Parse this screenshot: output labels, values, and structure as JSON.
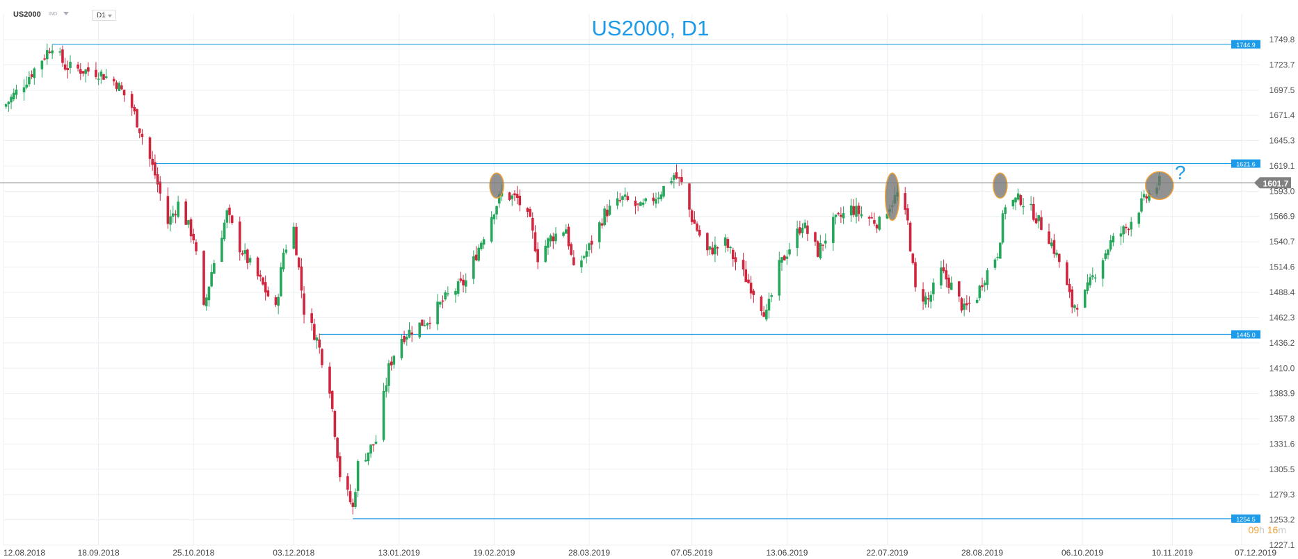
{
  "header": {
    "symbol": "US2000",
    "exchange": "IND",
    "timeframe": "D1"
  },
  "countdown": {
    "hours": "09",
    "hours_unit": "h",
    "minutes": "16",
    "minutes_unit": "m"
  },
  "colors": {
    "bull": "#26a65b",
    "bear": "#d0263d",
    "level": "#1e9be8",
    "price_line": "#7a7a7a",
    "title": "#1e9be8",
    "highlight_fill": "#6e6e6e",
    "highlight_stroke": "#f0a030"
  },
  "chart_data": {
    "type": "candlestick",
    "title": "US2000, D1",
    "annotation": "?",
    "ylim": [
      1227.1,
      1762.0
    ],
    "y_ticks": [
      1749.8,
      1723.7,
      1697.5,
      1671.4,
      1645.3,
      1619.1,
      1593.0,
      1566.9,
      1540.7,
      1514.6,
      1488.4,
      1462.3,
      1436.2,
      1410.0,
      1383.9,
      1357.8,
      1331.6,
      1305.5,
      1279.3,
      1253.2,
      1227.1
    ],
    "x_ticks": [
      "12.08.2018",
      "18.09.2018",
      "25.10.2018",
      "03.12.2018",
      "13.01.2019",
      "19.02.2019",
      "28.03.2019",
      "07.05.2019",
      "13.06.2019",
      "22.07.2019",
      "28.08.2019",
      "06.10.2019",
      "10.11.2019",
      "07.12.2019"
    ],
    "current_price": "1601.7",
    "horizontal_levels": [
      "1744.9",
      "1621.6",
      "1445.0",
      "1254.5"
    ],
    "price_path": [
      [
        "12.08.2018",
        1680
      ],
      [
        "20.08.2018",
        1705
      ],
      [
        "27.08.2018",
        1730
      ],
      [
        "31.08.2018",
        1744.9
      ],
      [
        "05.09.2018",
        1722
      ],
      [
        "12.09.2018",
        1718
      ],
      [
        "18.09.2018",
        1716
      ],
      [
        "25.09.2018",
        1705
      ],
      [
        "01.10.2018",
        1680
      ],
      [
        "05.10.2018",
        1650
      ],
      [
        "10.10.2018",
        1610
      ],
      [
        "15.10.2018",
        1560
      ],
      [
        "19.10.2018",
        1580
      ],
      [
        "25.10.2018",
        1545
      ],
      [
        "29.10.2018",
        1470
      ],
      [
        "01.11.2018",
        1510
      ],
      [
        "07.11.2018",
        1570
      ],
      [
        "12.11.2018",
        1535
      ],
      [
        "20.11.2018",
        1500
      ],
      [
        "26.11.2018",
        1470
      ],
      [
        "29.11.2018",
        1530
      ],
      [
        "03.12.2018",
        1555
      ],
      [
        "07.12.2018",
        1470
      ],
      [
        "12.12.2018",
        1440
      ],
      [
        "17.12.2018",
        1390
      ],
      [
        "21.12.2018",
        1300
      ],
      [
        "26.12.2018",
        1265
      ],
      [
        "28.12.2018",
        1310
      ],
      [
        "04.01.2019",
        1335
      ],
      [
        "09.01.2019",
        1410
      ],
      [
        "13.01.2019",
        1440
      ],
      [
        "18.01.2019",
        1450
      ],
      [
        "24.01.2019",
        1460
      ],
      [
        "01.02.2019",
        1485
      ],
      [
        "08.02.2019",
        1500
      ],
      [
        "13.02.2019",
        1535
      ],
      [
        "19.02.2019",
        1575
      ],
      [
        "22.02.2019",
        1590
      ],
      [
        "28.02.2019",
        1585
      ],
      [
        "05.03.2019",
        1560
      ],
      [
        "08.03.2019",
        1525
      ],
      [
        "13.03.2019",
        1545
      ],
      [
        "19.03.2019",
        1555
      ],
      [
        "22.03.2019",
        1510
      ],
      [
        "28.03.2019",
        1535
      ],
      [
        "03.04.2019",
        1570
      ],
      [
        "10.04.2019",
        1585
      ],
      [
        "17.04.2019",
        1575
      ],
      [
        "24.04.2019",
        1590
      ],
      [
        "30.04.2019",
        1610
      ],
      [
        "03.05.2019",
        1600
      ],
      [
        "07.05.2019",
        1565
      ],
      [
        "13.05.2019",
        1530
      ],
      [
        "20.05.2019",
        1540
      ],
      [
        "24.05.2019",
        1520
      ],
      [
        "31.05.2019",
        1490
      ],
      [
        "05.06.2019",
        1465
      ],
      [
        "10.06.2019",
        1515
      ],
      [
        "13.06.2019",
        1530
      ],
      [
        "19.06.2019",
        1560
      ],
      [
        "25.06.2019",
        1530
      ],
      [
        "01.07.2019",
        1560
      ],
      [
        "08.07.2019",
        1575
      ],
      [
        "15.07.2019",
        1565
      ],
      [
        "19.07.2019",
        1560
      ],
      [
        "22.07.2019",
        1575
      ],
      [
        "26.07.2019",
        1590
      ],
      [
        "30.07.2019",
        1560
      ],
      [
        "02.08.2019",
        1490
      ],
      [
        "07.08.2019",
        1480
      ],
      [
        "12.08.2019",
        1510
      ],
      [
        "16.08.2019",
        1495
      ],
      [
        "21.08.2019",
        1470
      ],
      [
        "26.08.2019",
        1485
      ],
      [
        "28.08.2019",
        1500
      ],
      [
        "03.09.2019",
        1530
      ],
      [
        "06.09.2019",
        1580
      ],
      [
        "12.09.2019",
        1585
      ],
      [
        "17.09.2019",
        1570
      ],
      [
        "23.09.2019",
        1545
      ],
      [
        "27.09.2019",
        1520
      ],
      [
        "02.10.2019",
        1475
      ],
      [
        "06.10.2019",
        1480
      ],
      [
        "11.10.2019",
        1510
      ],
      [
        "17.10.2019",
        1540
      ],
      [
        "23.10.2019",
        1555
      ],
      [
        "29.10.2019",
        1580
      ],
      [
        "01.11.2019",
        1590
      ],
      [
        "05.11.2019",
        1601.7
      ]
    ],
    "highlights": [
      "20.02.2019",
      "24.07.2019",
      "04.09.2019",
      "05.11.2019"
    ]
  }
}
